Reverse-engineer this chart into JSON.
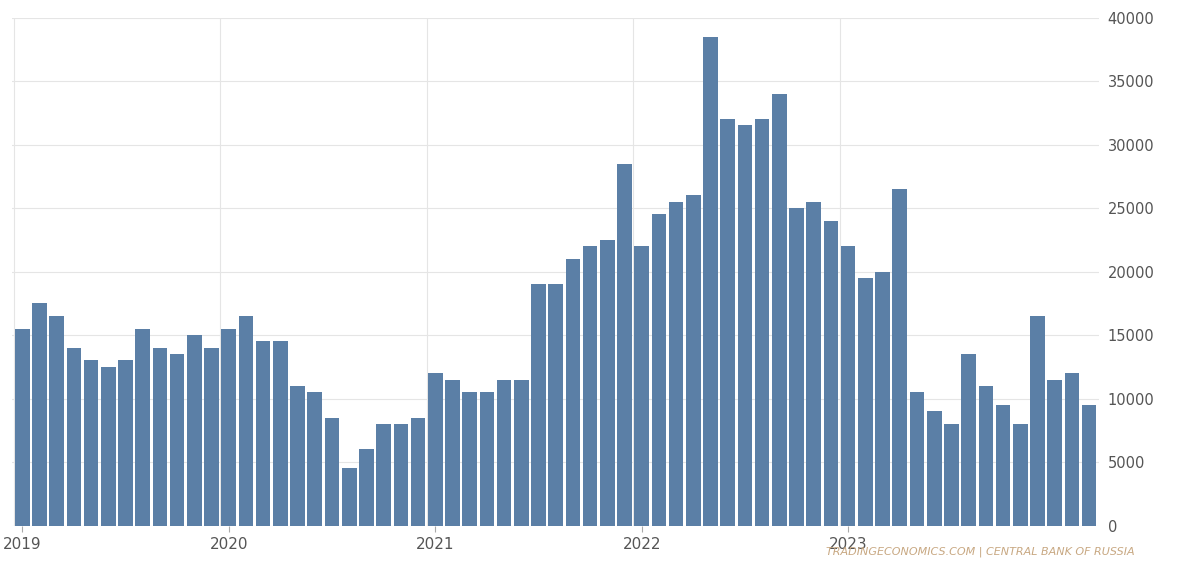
{
  "values": [
    15500,
    17500,
    16500,
    14000,
    13000,
    12500,
    13000,
    15500,
    14000,
    13500,
    15000,
    14000,
    15500,
    16500,
    14500,
    14500,
    11000,
    10500,
    8500,
    4500,
    6000,
    8000,
    8000,
    8500,
    12000,
    11500,
    10500,
    10500,
    11500,
    11500,
    19000,
    19000,
    21000,
    22000,
    22500,
    28500,
    22000,
    24500,
    25500,
    26000,
    38500,
    32000,
    31500,
    32000,
    34000,
    25000,
    25500,
    24000,
    22000,
    19500,
    20000,
    26500,
    10500,
    9000,
    8000,
    13500,
    11000,
    9500,
    8000,
    16500,
    11500,
    12000,
    9500
  ],
  "bar_color": "#5b7fa6",
  "background_color": "#ffffff",
  "grid_color": "#e5e5e5",
  "axis_label_color": "#555555",
  "watermark": "TRADINGECONOMICS.COM | CENTRAL BANK OF RUSSIA",
  "watermark_color": "#c8a882",
  "ylim": [
    0,
    40000
  ],
  "yticks": [
    0,
    5000,
    10000,
    15000,
    20000,
    25000,
    30000,
    35000,
    40000
  ],
  "xtick_labels": [
    "2019",
    "2020",
    "2021",
    "2022",
    "2023"
  ],
  "xtick_positions": [
    0,
    12,
    24,
    36,
    48
  ]
}
